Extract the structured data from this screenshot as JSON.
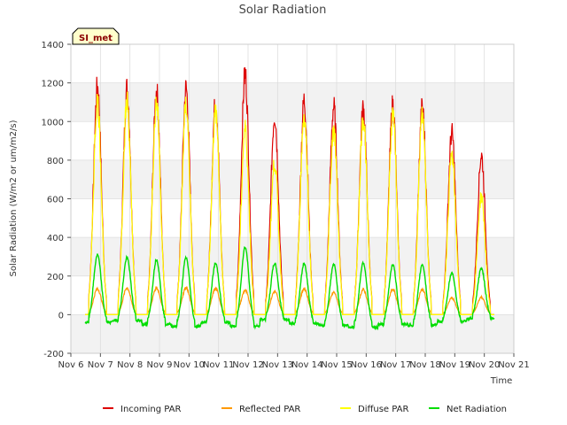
{
  "chart_data": {
    "type": "line",
    "title": "Solar Radiation",
    "xlabel": "Time",
    "ylabel": "Solar Radiation (W/m2 or um/m2/s)",
    "ylim": [
      -200,
      1400
    ],
    "yticks": [
      -200,
      0,
      200,
      400,
      600,
      800,
      1000,
      1200,
      1400
    ],
    "xlim": [
      6,
      21
    ],
    "xticks": [
      6,
      7,
      8,
      9,
      10,
      11,
      12,
      13,
      14,
      15,
      16,
      17,
      18,
      19,
      20,
      21
    ],
    "xtick_labels": [
      "Nov 6",
      "Nov 7",
      "Nov 8",
      "Nov 9",
      "Nov 10",
      "Nov 11",
      "Nov 12",
      "Nov 13",
      "Nov 14",
      "Nov 15",
      "Nov 16",
      "Nov 17",
      "Nov 18",
      "Nov 19",
      "Nov 20",
      "Nov 21"
    ],
    "site_label": "SI_met",
    "days": [
      6.9,
      7.9,
      8.9,
      9.9,
      10.9,
      11.9,
      12.9,
      13.9,
      14.9,
      15.9,
      16.9,
      17.9,
      18.9,
      19.9
    ],
    "series": [
      {
        "name": "Incoming PAR",
        "color": "#dd0000",
        "daily_peak": [
          1230,
          1220,
          1205,
          1220,
          1155,
          1300,
          1075,
          1155,
          1120,
          1115,
          1130,
          1120,
          980,
          860
        ],
        "night_value": 0
      },
      {
        "name": "Reflected PAR",
        "color": "#ff9900",
        "daily_peak": [
          140,
          145,
          145,
          145,
          140,
          130,
          125,
          140,
          120,
          135,
          135,
          135,
          90,
          95
        ],
        "night_value": 0
      },
      {
        "name": "Diffuse PAR",
        "color": "#ffff00",
        "daily_peak": [
          1150,
          1150,
          1150,
          1130,
          1100,
          1000,
          820,
          1070,
          1000,
          1060,
          1070,
          1070,
          860,
          640
        ],
        "night_value": 0
      },
      {
        "name": "Net Radiation",
        "color": "#00dd00",
        "daily_peak": [
          310,
          295,
          285,
          295,
          265,
          350,
          265,
          265,
          260,
          270,
          260,
          260,
          215,
          240
        ],
        "night_value": [
          -40,
          -30,
          -50,
          -60,
          -40,
          -60,
          -25,
          -45,
          -55,
          -65,
          -50,
          -55,
          -35,
          -20
        ]
      }
    ],
    "legend_position": "bottom",
    "grid": true
  }
}
